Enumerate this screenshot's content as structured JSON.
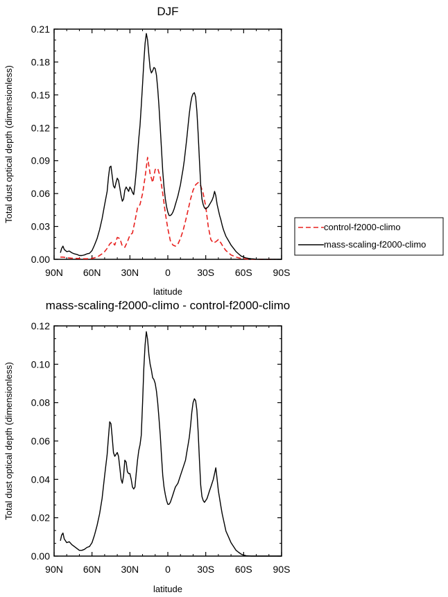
{
  "chart_data": [
    {
      "type": "line",
      "title": "DJF",
      "xlabel": "latitude",
      "ylabel": "Total dust optical depth (dimensionless)",
      "xlim": [
        90,
        -90
      ],
      "ylim": [
        0,
        0.21
      ],
      "xticks": [
        90,
        60,
        30,
        0,
        -30,
        -60,
        -90
      ],
      "xtick_labels": [
        "90N",
        "60N",
        "30N",
        "0",
        "30S",
        "60S",
        "90S"
      ],
      "yticks": [
        0,
        0.03,
        0.06,
        0.09,
        0.12,
        0.15,
        0.18,
        0.21
      ],
      "ytick_labels": [
        "0.00",
        "0.03",
        "0.06",
        "0.09",
        "0.12",
        "0.15",
        "0.18",
        "0.21"
      ],
      "legend": {
        "placement": "right-outside"
      },
      "series": [
        {
          "name": "control-f2000-climo",
          "color": "#e8201e",
          "dash": "dashed",
          "x": [
            85,
            83,
            80,
            76,
            72,
            68,
            64,
            60,
            56,
            52,
            50,
            48,
            46,
            44,
            42,
            40,
            38,
            36,
            34,
            32,
            30,
            28,
            26,
            24,
            22,
            20,
            18,
            16,
            14,
            12,
            10,
            8,
            6,
            4,
            2,
            0,
            -2,
            -4,
            -6,
            -8,
            -10,
            -12,
            -14,
            -16,
            -18,
            -20,
            -22,
            -24,
            -26,
            -28,
            -30,
            -32,
            -34,
            -36,
            -38,
            -40,
            -42,
            -44,
            -46,
            -48,
            -50,
            -54,
            -58,
            -62,
            -66,
            -70,
            -75,
            -80,
            -85
          ],
          "y": [
            0.002,
            0.002,
            0.0015,
            0.001,
            0.0008,
            0.0006,
            0.0005,
            0.0008,
            0.002,
            0.005,
            0.007,
            0.01,
            0.014,
            0.016,
            0.013,
            0.02,
            0.019,
            0.012,
            0.011,
            0.016,
            0.022,
            0.024,
            0.035,
            0.047,
            0.05,
            0.06,
            0.075,
            0.093,
            0.078,
            0.07,
            0.082,
            0.083,
            0.075,
            0.06,
            0.042,
            0.028,
            0.017,
            0.013,
            0.012,
            0.014,
            0.019,
            0.026,
            0.035,
            0.045,
            0.055,
            0.063,
            0.068,
            0.07,
            0.067,
            0.06,
            0.048,
            0.03,
            0.018,
            0.015,
            0.016,
            0.018,
            0.015,
            0.011,
            0.008,
            0.006,
            0.004,
            0.002,
            0.0008,
            0.0003,
            0.0001,
            0,
            0,
            0,
            0
          ]
        },
        {
          "name": "mass-scaling-f2000-climo",
          "color": "#000000",
          "dash": "solid",
          "x": [
            85,
            84,
            83,
            82,
            80,
            78,
            76,
            74,
            72,
            70,
            68,
            66,
            64,
            62,
            60,
            58,
            56,
            54,
            52,
            50,
            48,
            47,
            46,
            45,
            44,
            43,
            42,
            41,
            40,
            39,
            38,
            37,
            36,
            35,
            34,
            33,
            32,
            31,
            30,
            29,
            28,
            27,
            26,
            25,
            24,
            23,
            22,
            21,
            20,
            19,
            18,
            17,
            16,
            15,
            14,
            13,
            12,
            11,
            10,
            9,
            8,
            7,
            6,
            5,
            4,
            3,
            2,
            1,
            0,
            -1,
            -2,
            -3,
            -4,
            -5,
            -6,
            -7,
            -8,
            -9,
            -10,
            -11,
            -12,
            -13,
            -14,
            -15,
            -16,
            -17,
            -18,
            -19,
            -20,
            -21,
            -22,
            -23,
            -24,
            -25,
            -26,
            -27,
            -28,
            -29,
            -30,
            -31,
            -32,
            -33,
            -34,
            -35,
            -36,
            -37,
            -38,
            -39,
            -40,
            -41,
            -42,
            -43,
            -44,
            -45,
            -46,
            -48,
            -50,
            -52,
            -54,
            -56,
            -58,
            -60,
            -62,
            -64,
            -66,
            -68,
            -70,
            -74,
            -78,
            -82,
            -86,
            -90
          ],
          "y": [
            0.006,
            0.01,
            0.012,
            0.009,
            0.007,
            0.0075,
            0.006,
            0.005,
            0.0045,
            0.0035,
            0.0035,
            0.004,
            0.005,
            0.0055,
            0.008,
            0.013,
            0.019,
            0.027,
            0.037,
            0.05,
            0.062,
            0.075,
            0.084,
            0.085,
            0.076,
            0.067,
            0.065,
            0.07,
            0.074,
            0.072,
            0.065,
            0.058,
            0.053,
            0.055,
            0.063,
            0.066,
            0.064,
            0.062,
            0.066,
            0.064,
            0.061,
            0.059,
            0.068,
            0.08,
            0.095,
            0.11,
            0.122,
            0.14,
            0.16,
            0.18,
            0.197,
            0.206,
            0.2,
            0.186,
            0.174,
            0.17,
            0.172,
            0.175,
            0.174,
            0.168,
            0.156,
            0.14,
            0.12,
            0.1,
            0.08,
            0.066,
            0.055,
            0.048,
            0.043,
            0.04,
            0.04,
            0.041,
            0.043,
            0.046,
            0.05,
            0.054,
            0.058,
            0.063,
            0.068,
            0.075,
            0.082,
            0.09,
            0.1,
            0.11,
            0.122,
            0.133,
            0.142,
            0.148,
            0.151,
            0.152,
            0.148,
            0.135,
            0.115,
            0.09,
            0.068,
            0.055,
            0.05,
            0.047,
            0.046,
            0.047,
            0.048,
            0.05,
            0.052,
            0.054,
            0.057,
            0.062,
            0.058,
            0.05,
            0.045,
            0.04,
            0.036,
            0.031,
            0.027,
            0.024,
            0.021,
            0.017,
            0.013,
            0.01,
            0.007,
            0.005,
            0.003,
            0.002,
            0.0012,
            0.0008,
            0.0005,
            0.0003,
            0.0001,
            0,
            0,
            0,
            0,
            0
          ]
        }
      ]
    },
    {
      "type": "line",
      "title": "mass-scaling-f2000-climo - control-f2000-climo",
      "xlabel": "latitude",
      "ylabel": "Total dust optical depth (dimensionless)",
      "xlim": [
        90,
        -90
      ],
      "ylim": [
        0,
        0.12
      ],
      "xticks": [
        90,
        60,
        30,
        0,
        -30,
        -60,
        -90
      ],
      "xtick_labels": [
        "90N",
        "60N",
        "30N",
        "0",
        "30S",
        "60S",
        "90S"
      ],
      "yticks": [
        0,
        0.02,
        0.04,
        0.06,
        0.08,
        0.1,
        0.12
      ],
      "ytick_labels": [
        "0.00",
        "0.02",
        "0.04",
        "0.06",
        "0.08",
        "0.10",
        "0.12"
      ],
      "series": [
        {
          "name": "mass-scaling-f2000-climo - control-f2000-climo",
          "color": "#000000",
          "dash": "solid",
          "x": [
            85,
            84,
            83,
            82,
            80,
            78,
            76,
            74,
            72,
            70,
            68,
            66,
            64,
            62,
            60,
            58,
            56,
            54,
            52,
            50,
            48,
            47,
            46,
            45,
            44,
            43,
            42,
            41,
            40,
            39,
            38,
            37,
            36,
            35,
            34,
            33,
            32,
            31,
            30,
            29,
            28,
            27,
            26,
            25,
            24,
            23,
            22,
            21,
            20,
            19,
            18,
            17,
            16,
            15,
            14,
            13,
            12,
            11,
            10,
            9,
            8,
            7,
            6,
            5,
            4,
            3,
            2,
            1,
            0,
            -1,
            -2,
            -3,
            -4,
            -5,
            -6,
            -7,
            -8,
            -9,
            -10,
            -11,
            -12,
            -13,
            -14,
            -15,
            -16,
            -17,
            -18,
            -19,
            -20,
            -21,
            -22,
            -23,
            -24,
            -25,
            -26,
            -27,
            -28,
            -29,
            -30,
            -31,
            -32,
            -33,
            -34,
            -35,
            -36,
            -37,
            -38,
            -39,
            -40,
            -41,
            -42,
            -43,
            -44,
            -45,
            -46,
            -48,
            -50,
            -52,
            -54,
            -56,
            -58,
            -60,
            -62,
            -64,
            -66,
            -68,
            -70,
            -74,
            -78,
            -82,
            -86,
            -90
          ],
          "y": [
            0.008,
            0.011,
            0.012,
            0.009,
            0.007,
            0.0075,
            0.006,
            0.005,
            0.004,
            0.003,
            0.003,
            0.0035,
            0.0045,
            0.005,
            0.007,
            0.011,
            0.016,
            0.022,
            0.03,
            0.042,
            0.053,
            0.062,
            0.07,
            0.069,
            0.062,
            0.054,
            0.052,
            0.053,
            0.054,
            0.052,
            0.046,
            0.04,
            0.038,
            0.042,
            0.05,
            0.049,
            0.044,
            0.043,
            0.043,
            0.04,
            0.036,
            0.035,
            0.036,
            0.043,
            0.05,
            0.055,
            0.058,
            0.063,
            0.08,
            0.098,
            0.11,
            0.117,
            0.113,
            0.105,
            0.1,
            0.097,
            0.093,
            0.092,
            0.09,
            0.086,
            0.08,
            0.072,
            0.063,
            0.052,
            0.042,
            0.036,
            0.032,
            0.029,
            0.027,
            0.027,
            0.028,
            0.03,
            0.032,
            0.034,
            0.036,
            0.037,
            0.038,
            0.04,
            0.042,
            0.044,
            0.046,
            0.048,
            0.05,
            0.054,
            0.058,
            0.062,
            0.068,
            0.075,
            0.08,
            0.082,
            0.081,
            0.076,
            0.065,
            0.05,
            0.037,
            0.031,
            0.029,
            0.028,
            0.029,
            0.03,
            0.032,
            0.034,
            0.036,
            0.038,
            0.04,
            0.043,
            0.046,
            0.04,
            0.034,
            0.03,
            0.026,
            0.022,
            0.019,
            0.016,
            0.013,
            0.01,
            0.007,
            0.005,
            0.003,
            0.002,
            0.001,
            0.0005,
            0.0002,
            0.0001,
            0,
            0,
            0,
            0,
            0,
            0,
            0,
            0
          ]
        }
      ]
    }
  ]
}
